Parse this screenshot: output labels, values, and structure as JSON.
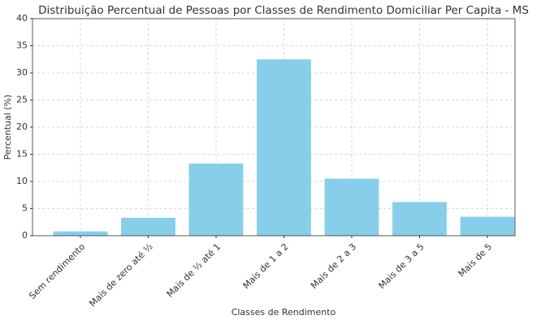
{
  "chart_data": {
    "type": "bar",
    "title": "Distribuição Percentual de Pessoas por Classes de Rendimento Domiciliar Per Capita - MS",
    "x_label": "Classes de Rendimento",
    "y_label": "Percentual (%)",
    "categories": [
      "Sem rendimento",
      "Mais de zero até ½",
      "Mais de ½ até 1",
      "Mais de 1 a 2",
      "Mais de 2 a 3",
      "Mais de 3 a 5",
      "Mais de 5"
    ],
    "values": [
      0.8,
      3.3,
      13.3,
      32.5,
      10.5,
      6.2,
      3.5
    ],
    "color": "#87ceeb",
    "ylim": [
      0,
      40
    ],
    "yticks": [
      0,
      5,
      10,
      15,
      20,
      25,
      30,
      35,
      40
    ],
    "grid": true
  }
}
